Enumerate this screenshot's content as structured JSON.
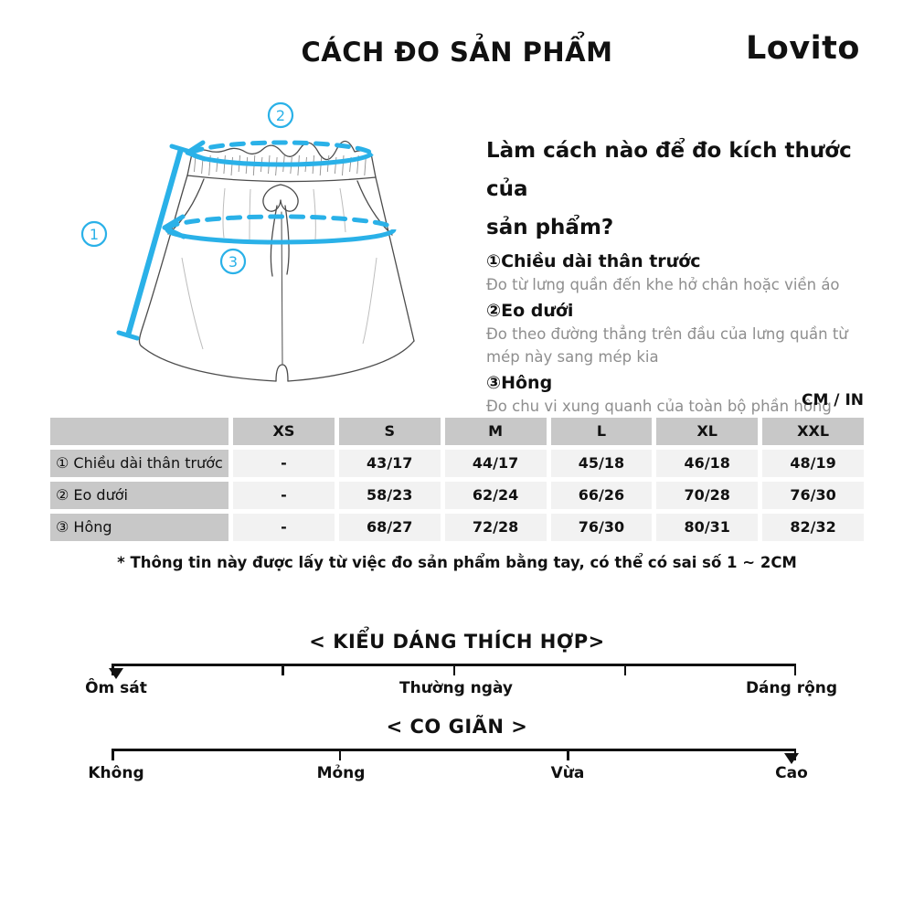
{
  "header": {
    "title": "CÁCH ĐO SẢN PHẨM",
    "brand": "Lovito"
  },
  "colors": {
    "accent": "#2ab1e8",
    "table_header_bg": "#c8c8c8",
    "table_cell_bg": "#f2f2f2",
    "muted_text": "#8e8e8e"
  },
  "diagram": {
    "markers": [
      "1",
      "2",
      "3"
    ]
  },
  "guide": {
    "heading_lines": [
      "Làm cách nào để đo kích thước của",
      "sản phẩm?"
    ],
    "items": [
      {
        "label": "①Chiều dài thân trước",
        "desc": "Đo từ lưng quần đến khe hở chân hoặc viền áo"
      },
      {
        "label": "②Eo dưới",
        "desc": "Đo theo đường thẳng trên đầu của lưng quần từ mép này sang mép kia"
      },
      {
        "label": "③Hông",
        "desc": "Đo chu vi xung quanh của toàn bộ phần hông"
      }
    ]
  },
  "size_table": {
    "unit_label": "CM / IN",
    "columns": [
      "XS",
      "S",
      "M",
      "L",
      "XL",
      "XXL"
    ],
    "rows": [
      {
        "label": "① Chiều dài thân trước",
        "values": [
          "-",
          "43/17",
          "44/17",
          "45/18",
          "46/18",
          "48/19"
        ]
      },
      {
        "label": "② Eo dưới",
        "values": [
          "-",
          "58/23",
          "62/24",
          "66/26",
          "70/28",
          "76/30"
        ]
      },
      {
        "label": "③ Hông",
        "values": [
          "-",
          "68/27",
          "72/28",
          "76/30",
          "80/31",
          "82/32"
        ]
      }
    ],
    "note": "* Thông tin này được lấy từ việc đo sản phẩm bằng tay, có thể có sai số 1 ~ 2CM"
  },
  "fit_scale": {
    "title": "< KIỂU DÁNG THÍCH HỢP>",
    "labels": [
      "Ôm sát",
      "Thường ngày",
      "Dáng rộng"
    ],
    "marker": "left"
  },
  "stretch_scale": {
    "title": "< CO GIÃN >",
    "labels": [
      "Không",
      "Mỏng",
      "Vừa",
      "Cao"
    ],
    "marker": "right"
  }
}
